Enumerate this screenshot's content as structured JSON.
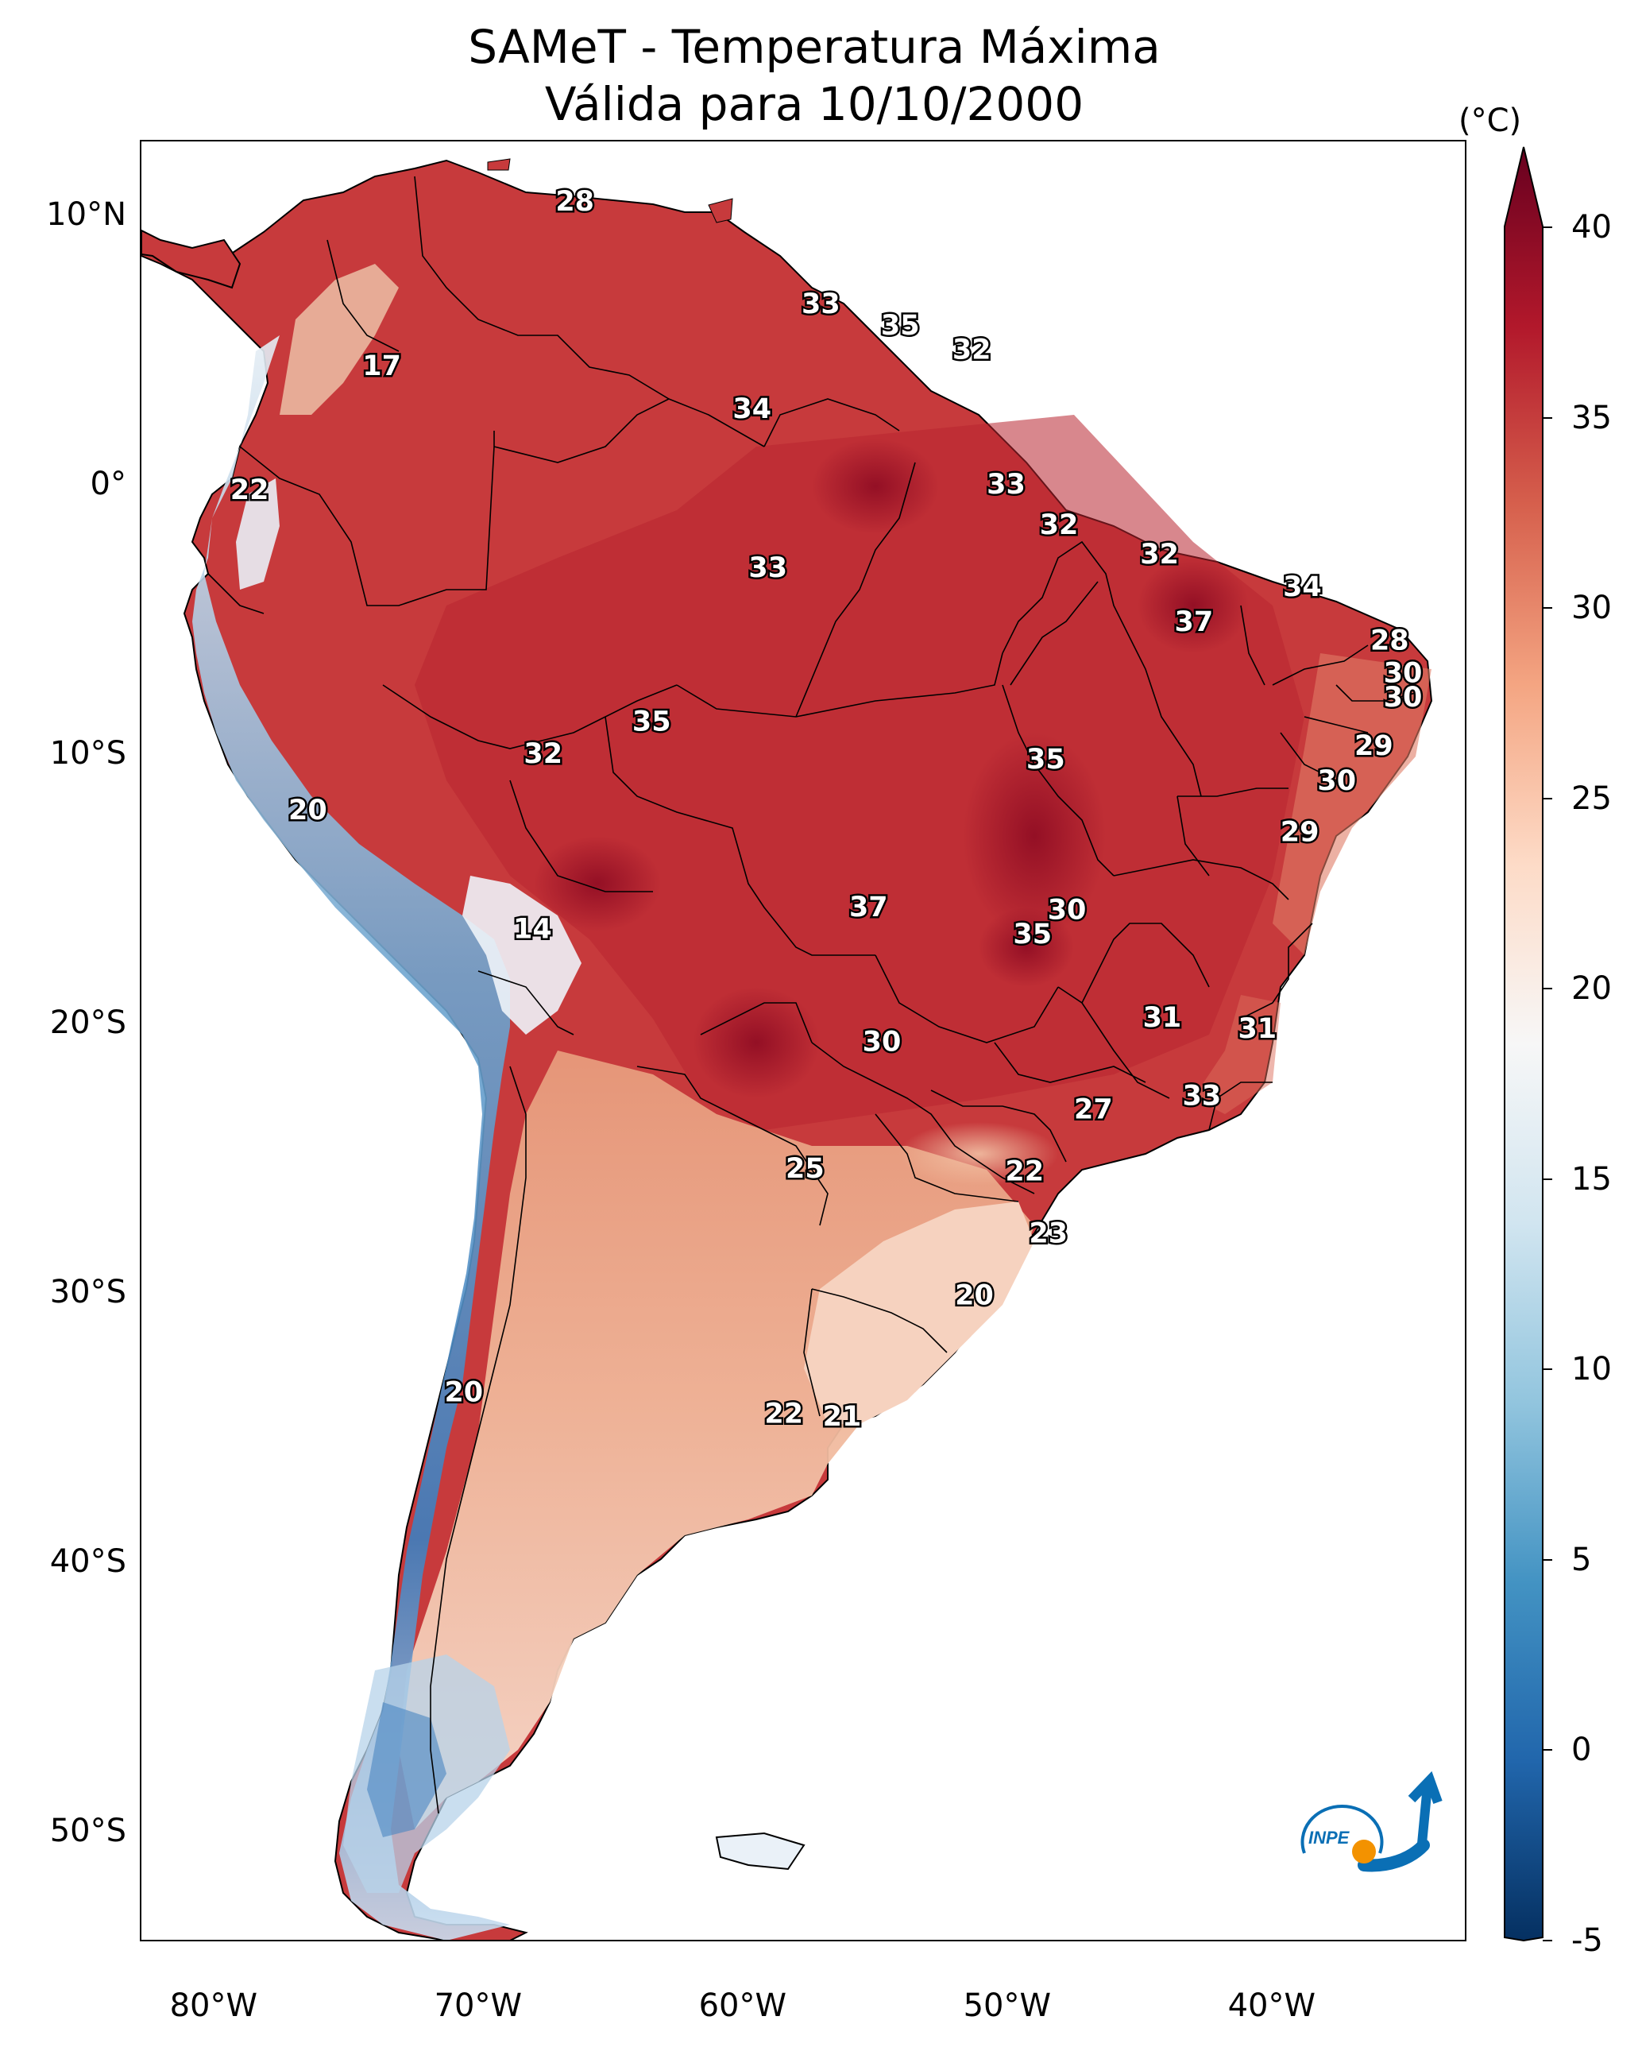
{
  "title": {
    "line1": "SAMeT - Temperatura Máxima",
    "line2": "Válida para 10/10/2000"
  },
  "map": {
    "longitude_ticks": [
      "80°W",
      "70°W",
      "60°W",
      "50°W",
      "40°W"
    ],
    "latitude_ticks": [
      "10°N",
      "0°",
      "10°S",
      "20°S",
      "30°S",
      "40°S",
      "50°S"
    ],
    "contour_labels": [
      {
        "text": "28",
        "lon": -66.4,
        "lat": 10.5
      },
      {
        "text": "33",
        "lon": -57.1,
        "lat": 6.7
      },
      {
        "text": "35",
        "lon": -54.1,
        "lat": 5.9
      },
      {
        "text": "32",
        "lon": -51.4,
        "lat": 5.0
      },
      {
        "text": "17",
        "lon": -73.7,
        "lat": 4.4
      },
      {
        "text": "34",
        "lon": -59.7,
        "lat": 2.8
      },
      {
        "text": "22",
        "lon": -78.7,
        "lat": -0.2
      },
      {
        "text": "33",
        "lon": -50.1,
        "lat": 0.0
      },
      {
        "text": "32",
        "lon": -48.1,
        "lat": -1.5
      },
      {
        "text": "32",
        "lon": -44.3,
        "lat": -2.6
      },
      {
        "text": "33",
        "lon": -59.1,
        "lat": -3.1
      },
      {
        "text": "34",
        "lon": -38.9,
        "lat": -3.8
      },
      {
        "text": "37",
        "lon": -43.0,
        "lat": -5.1
      },
      {
        "text": "28",
        "lon": -35.6,
        "lat": -5.8
      },
      {
        "text": "30",
        "lon": -35.1,
        "lat": -7.0
      },
      {
        "text": "30",
        "lon": -35.1,
        "lat": -7.9
      },
      {
        "text": "35",
        "lon": -63.5,
        "lat": -8.8
      },
      {
        "text": "32",
        "lon": -67.6,
        "lat": -10.0
      },
      {
        "text": "35",
        "lon": -48.6,
        "lat": -10.2
      },
      {
        "text": "29",
        "lon": -36.2,
        "lat": -9.7
      },
      {
        "text": "30",
        "lon": -37.6,
        "lat": -11.0
      },
      {
        "text": "20",
        "lon": -76.5,
        "lat": -12.1
      },
      {
        "text": "29",
        "lon": -39.0,
        "lat": -12.9
      },
      {
        "text": "30",
        "lon": -47.8,
        "lat": -15.8
      },
      {
        "text": "37",
        "lon": -55.3,
        "lat": -15.7
      },
      {
        "text": "35",
        "lon": -49.1,
        "lat": -16.7
      },
      {
        "text": "14",
        "lon": -68.0,
        "lat": -16.5
      },
      {
        "text": "31",
        "lon": -44.2,
        "lat": -19.8
      },
      {
        "text": "31",
        "lon": -40.6,
        "lat": -20.2
      },
      {
        "text": "30",
        "lon": -54.8,
        "lat": -20.7
      },
      {
        "text": "33",
        "lon": -42.7,
        "lat": -22.7
      },
      {
        "text": "27",
        "lon": -46.8,
        "lat": -23.2
      },
      {
        "text": "25",
        "lon": -57.7,
        "lat": -25.4
      },
      {
        "text": "22",
        "lon": -49.4,
        "lat": -25.5
      },
      {
        "text": "23",
        "lon": -48.5,
        "lat": -27.8
      },
      {
        "text": "20",
        "lon": -51.3,
        "lat": -30.1
      },
      {
        "text": "20",
        "lon": -70.6,
        "lat": -33.7
      },
      {
        "text": "22",
        "lon": -58.5,
        "lat": -34.5
      },
      {
        "text": "21",
        "lon": -56.3,
        "lat": -34.6
      }
    ]
  },
  "colorbar": {
    "unit": "(°C)",
    "ticks": [
      "40",
      "35",
      "30",
      "25",
      "20",
      "15",
      "10",
      "5",
      "0",
      "-5"
    ],
    "min": -5,
    "max": 40,
    "colormap": [
      "#053061",
      "#2166ac",
      "#4393c3",
      "#92c5de",
      "#d1e5f0",
      "#f7f7f7",
      "#fddbc7",
      "#f4a582",
      "#d6604d",
      "#b2182b",
      "#67001f"
    ]
  },
  "logo": {
    "text": "INPE",
    "colors": [
      "#0a6fb5",
      "#f39200"
    ]
  }
}
